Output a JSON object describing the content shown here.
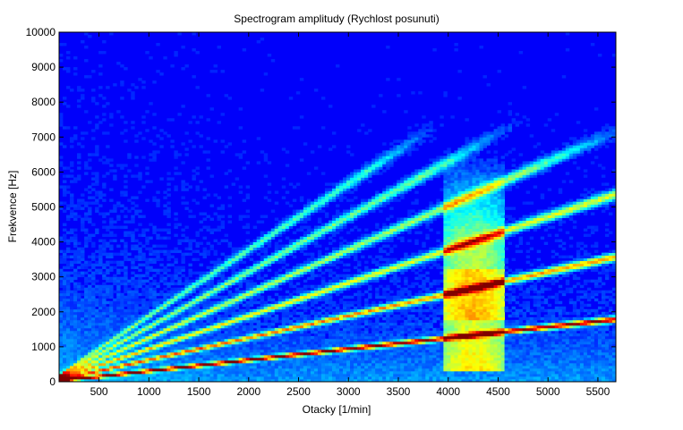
{
  "chart_data": {
    "type": "heatmap",
    "title": "Spectrogram amplitudy (Rychlost posunuti)",
    "xlabel": "Otacky [1/min]",
    "ylabel": "Frekvence [Hz]",
    "xlim": [
      100,
      5680
    ],
    "ylim": [
      0,
      10000
    ],
    "xticks": [
      500,
      1000,
      1500,
      2000,
      2500,
      3000,
      3500,
      4000,
      4500,
      5000,
      5500
    ],
    "yticks": [
      0,
      1000,
      2000,
      3000,
      4000,
      5000,
      6000,
      7000,
      8000,
      9000,
      10000
    ],
    "colormap": "jet",
    "grid": false,
    "orders": [
      {
        "order": 1,
        "hz_per_rpm": 0.315,
        "intensity": 1.0
      },
      {
        "order": 2,
        "hz_per_rpm": 0.63,
        "intensity": 0.72
      },
      {
        "order": 3,
        "hz_per_rpm": 0.945,
        "intensity": 0.58
      },
      {
        "order": 4,
        "hz_per_rpm": 1.26,
        "intensity": 0.5
      },
      {
        "order": 5,
        "hz_per_rpm": 1.575,
        "intensity": 0.44
      },
      {
        "order": 6,
        "hz_per_rpm": 1.89,
        "intensity": 0.38
      }
    ],
    "broadband_regions": [
      {
        "rpm_from": 3950,
        "rpm_to": 4550,
        "hz_from": 800,
        "hz_to": 6500,
        "intensity": 0.4
      }
    ]
  }
}
